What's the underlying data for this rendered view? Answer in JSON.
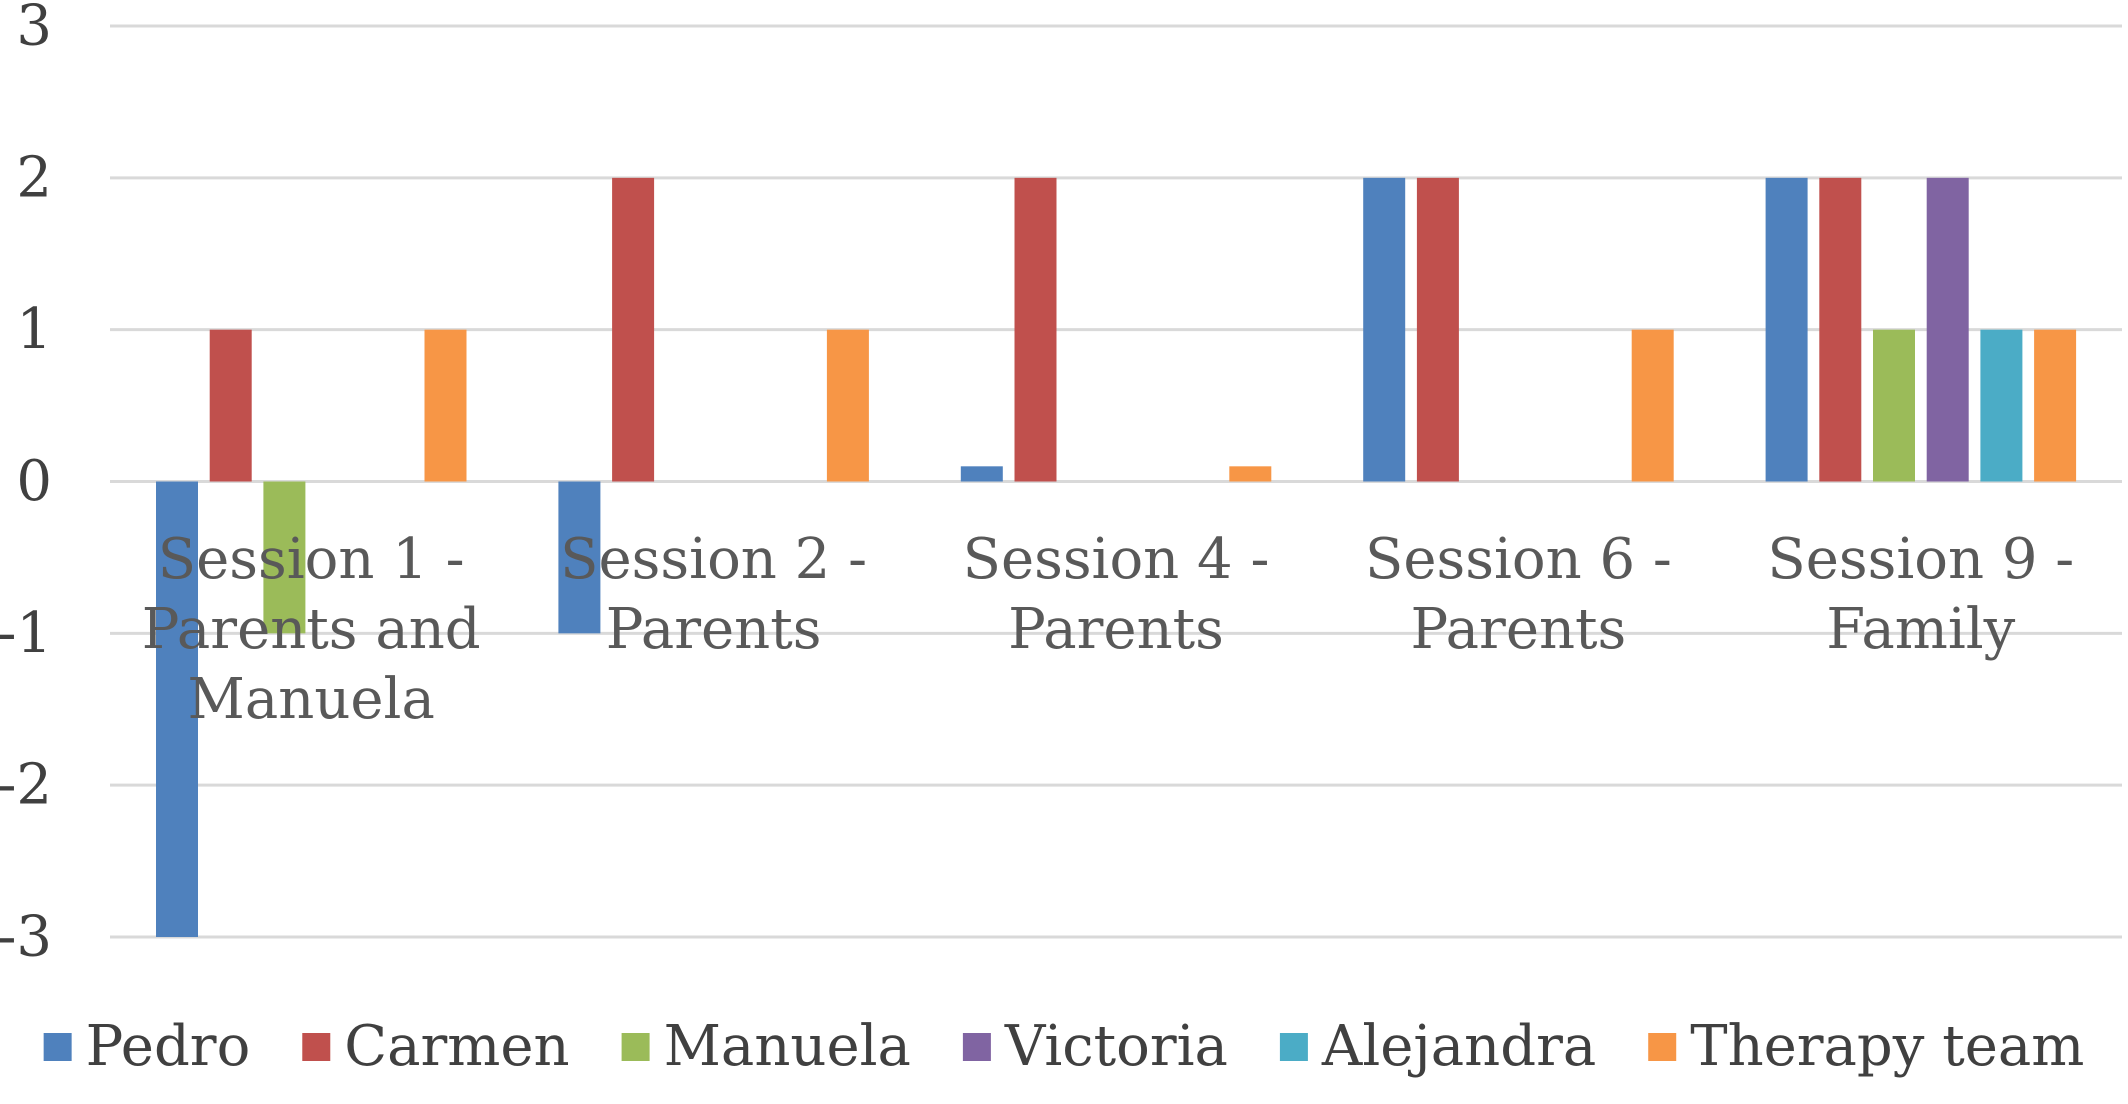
{
  "chart_data": {
    "type": "bar",
    "categories": [
      [
        "Session 1 -",
        "Parents and",
        "Manuela"
      ],
      [
        "Session 2 -",
        "Parents"
      ],
      [
        "Session 4 -",
        "Parents"
      ],
      [
        "Session 6 -",
        "Parents"
      ],
      [
        "Session 9 -",
        "Family"
      ]
    ],
    "series": [
      {
        "name": "Pedro",
        "color": "#4F81BD",
        "values": [
          -3,
          -1,
          0.1,
          2,
          2
        ]
      },
      {
        "name": "Carmen",
        "color": "#C0504D",
        "values": [
          1,
          2,
          2,
          2,
          2
        ]
      },
      {
        "name": "Manuela",
        "color": "#9BBB59",
        "values": [
          -1,
          0,
          0,
          0,
          1
        ]
      },
      {
        "name": "Victoria",
        "color": "#8064A2",
        "values": [
          0,
          0,
          0,
          0,
          2
        ]
      },
      {
        "name": "Alejandra",
        "color": "#4BACC6",
        "values": [
          0,
          0,
          0,
          0,
          1
        ]
      },
      {
        "name": "Therapy team",
        "color": "#F79646",
        "values": [
          1,
          1,
          0.1,
          1,
          1
        ]
      }
    ],
    "yticks": [
      3,
      2,
      1,
      0,
      -1,
      -2,
      -3
    ],
    "ylim": [
      -3,
      3
    ],
    "grid": true,
    "legend": "bottom",
    "gridColor": "#D9D9D9"
  }
}
